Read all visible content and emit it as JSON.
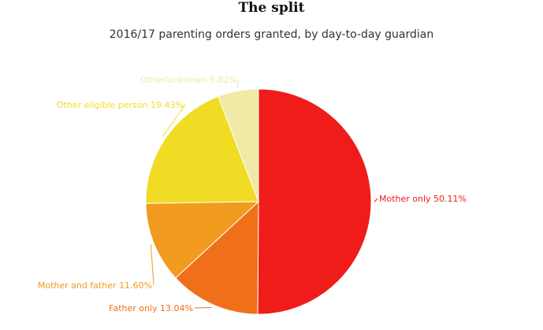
{
  "chart_data": {
    "type": "pie",
    "title": "The split",
    "subtitle": "2016/17 parenting orders granted, by day-to-day guardian",
    "start": "top, clockwise",
    "slices": [
      {
        "label": "Mother only",
        "value": 50.11,
        "display": "Mother only 50.11%",
        "color": "#ef1c1a"
      },
      {
        "label": "Father only",
        "value": 13.04,
        "display": "Father only 13.04%",
        "color": "#f07019"
      },
      {
        "label": "Mother and father",
        "value": 11.6,
        "display": "Mother and father 11.60%",
        "color": "#f19b1f"
      },
      {
        "label": "Other eligible person",
        "value": 19.43,
        "display": "Other eligible person 19.43%",
        "color": "#f0dc25"
      },
      {
        "label": "Other/unknown",
        "value": 5.82,
        "display": "Other/unknown 5.82%",
        "color": "#f0eaa6"
      }
    ]
  }
}
